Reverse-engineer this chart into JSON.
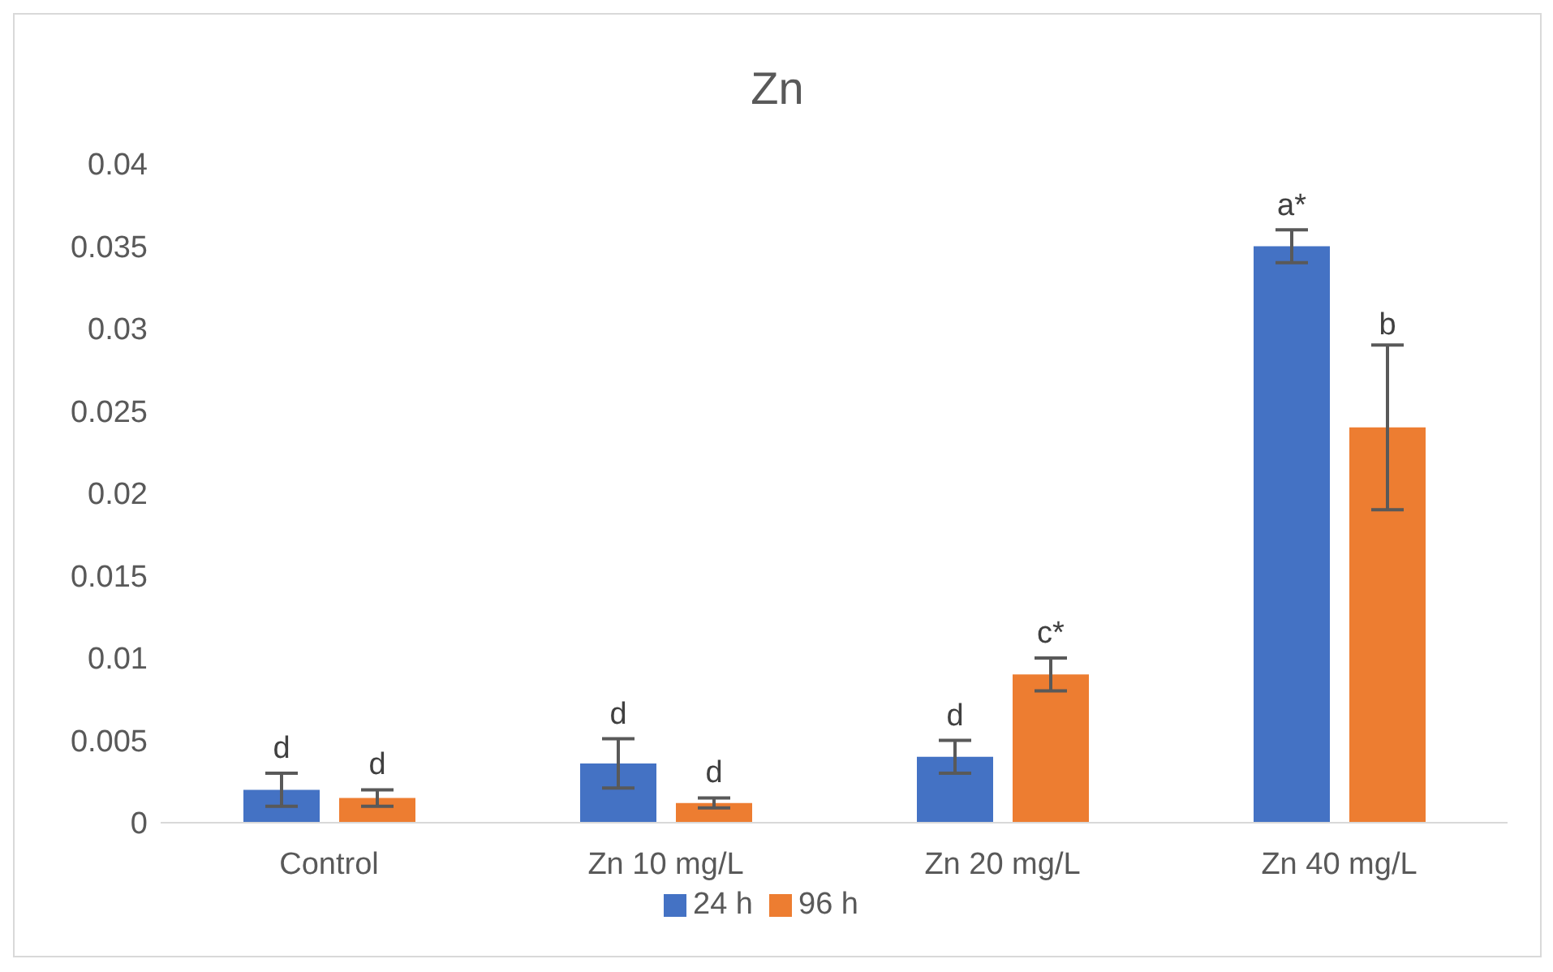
{
  "chart_data": {
    "type": "bar",
    "title": "Zn",
    "categories": [
      "Control",
      "Zn 10 mg/L",
      "Zn 20 mg/L",
      "Zn 40 mg/L"
    ],
    "series": [
      {
        "name": "24 h",
        "color": "#4472c4",
        "values": [
          0.002,
          0.0036,
          0.004,
          0.035
        ],
        "errors": [
          0.001,
          0.0015,
          0.001,
          0.001
        ],
        "value_labels": [
          "d",
          "d",
          "d",
          "a*"
        ]
      },
      {
        "name": "96 h",
        "color": "#ed7d31",
        "values": [
          0.0015,
          0.0012,
          0.009,
          0.024
        ],
        "errors": [
          0.0005,
          0.0003,
          0.001,
          0.005
        ],
        "value_labels": [
          "d",
          "d",
          "c*",
          "b"
        ]
      }
    ],
    "ylim": [
      0,
      0.04
    ],
    "yticks": [
      0,
      0.005,
      0.01,
      0.015,
      0.02,
      0.025,
      0.03,
      0.035,
      0.04
    ],
    "grid": false,
    "legend": "bottom"
  }
}
